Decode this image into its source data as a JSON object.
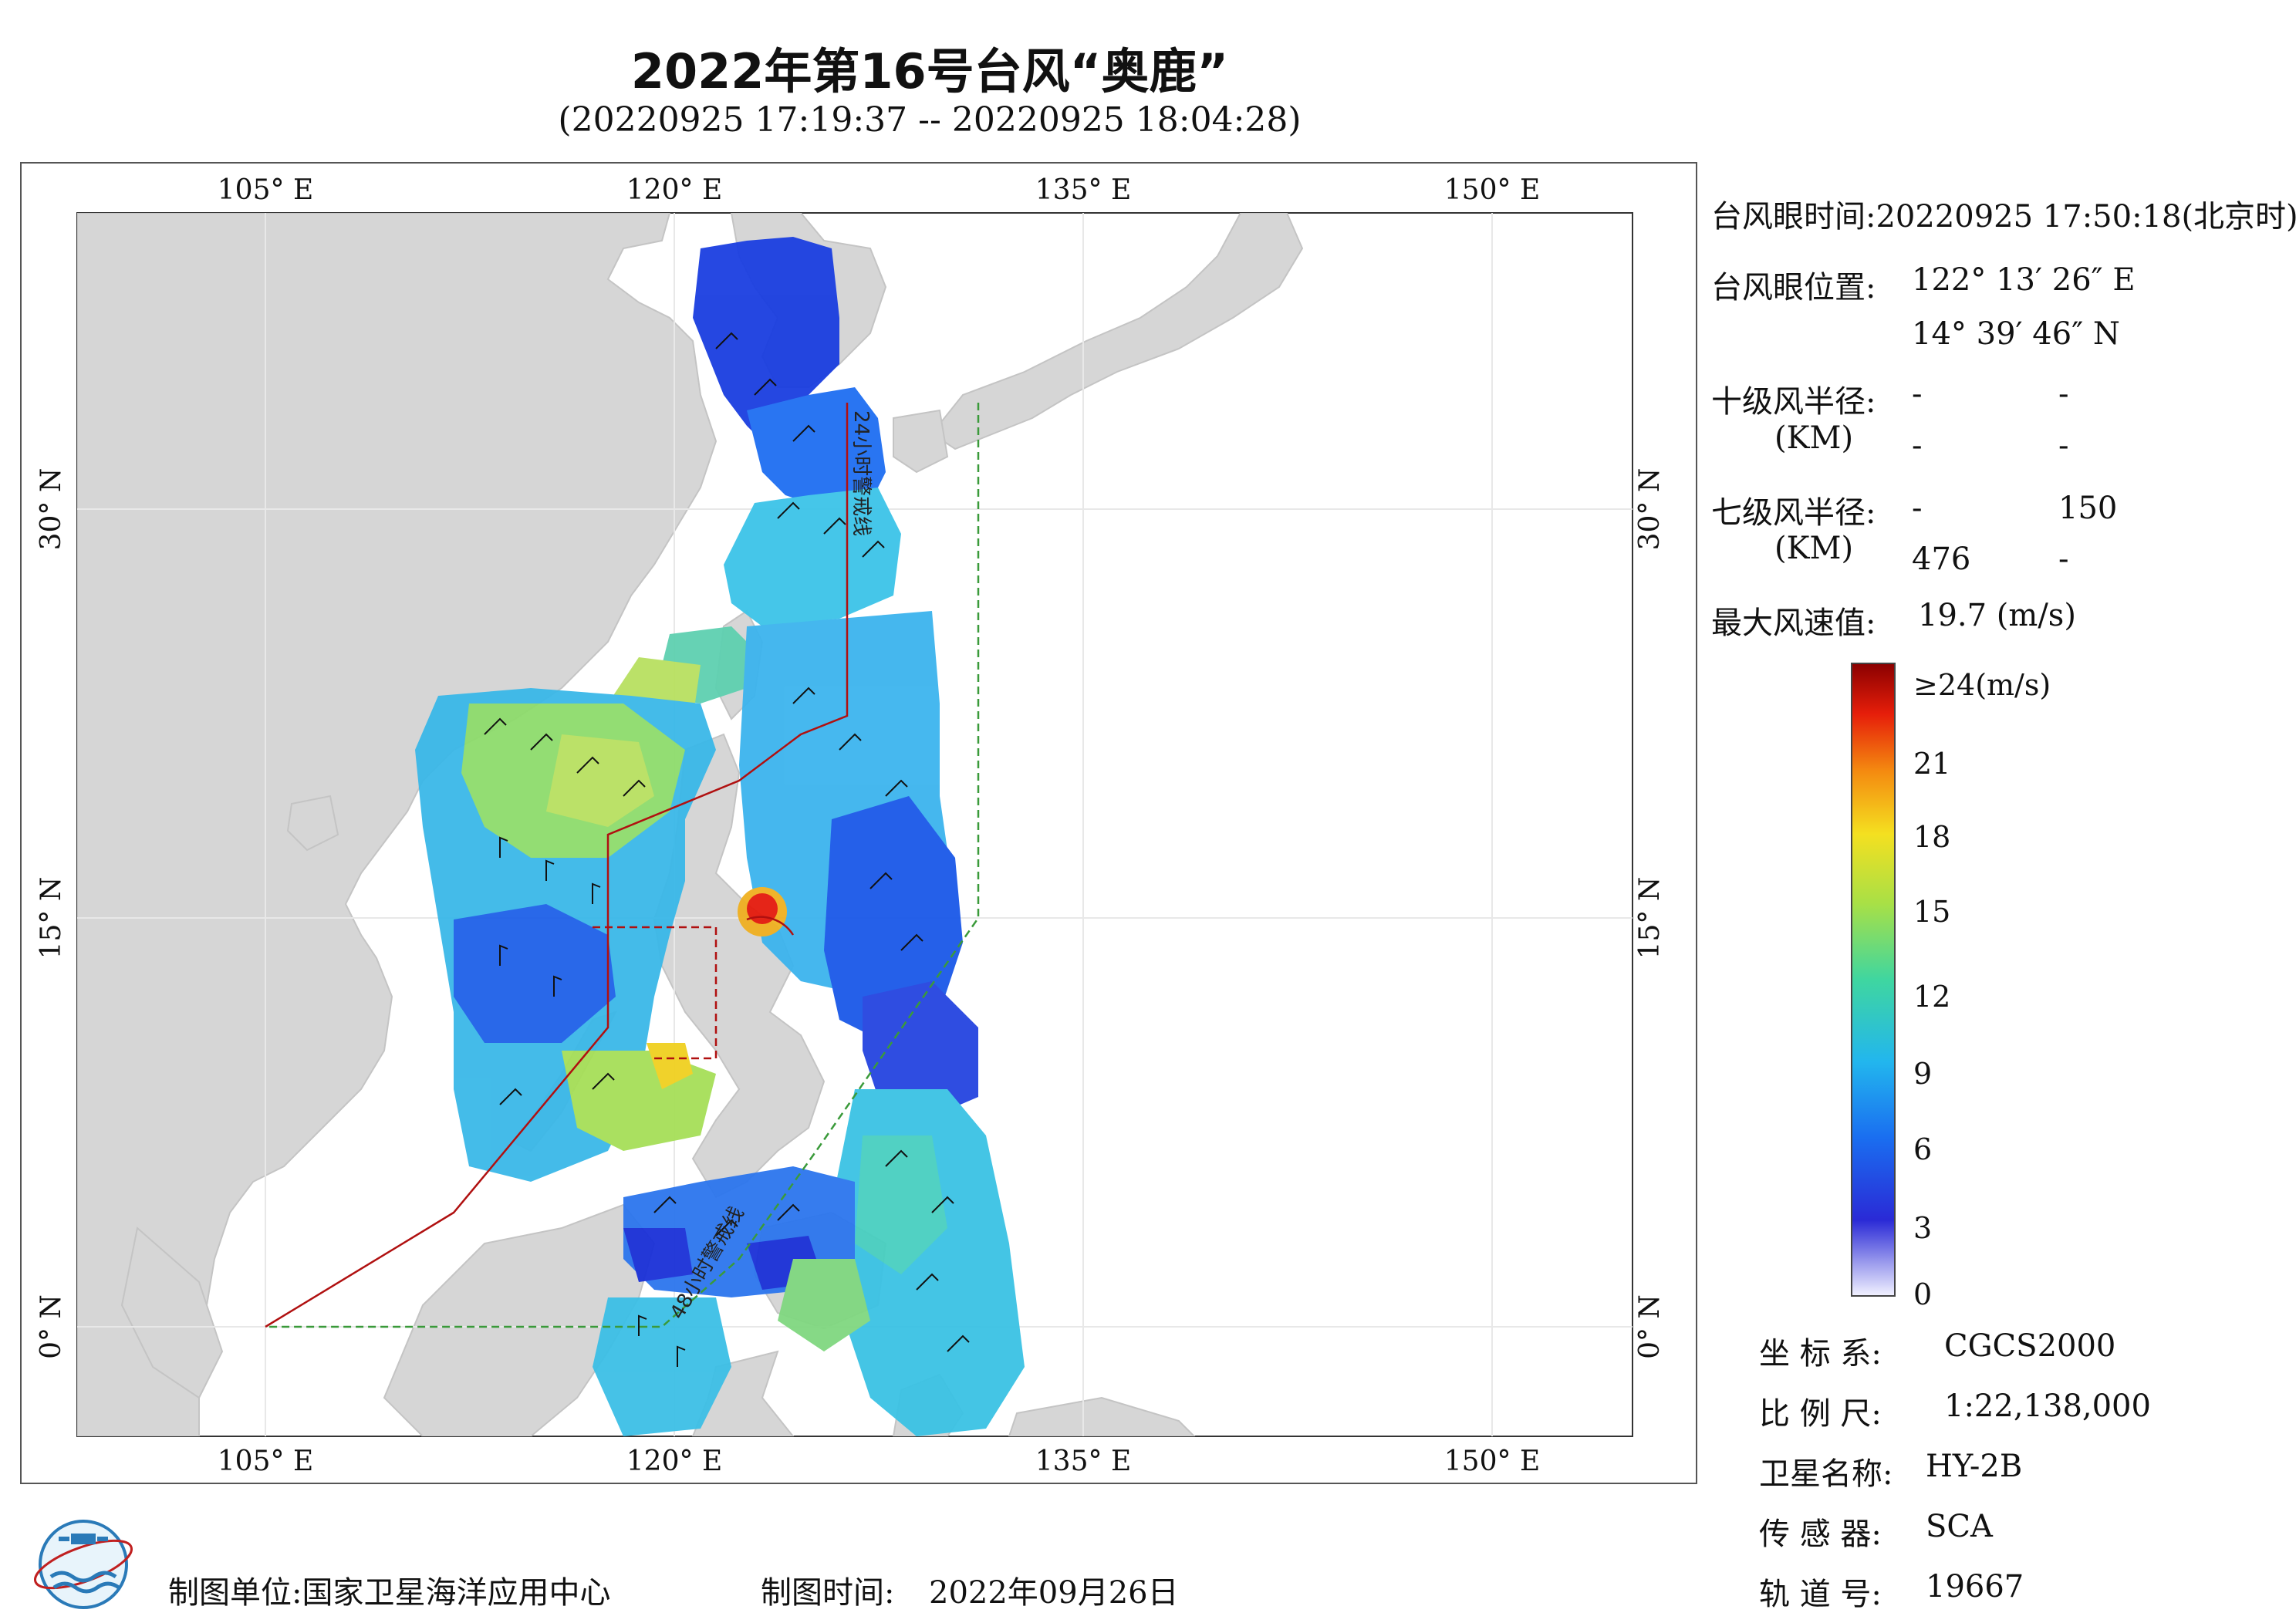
{
  "title": "2022年第16号台风“奥鹿”",
  "subtitle": "(20220925 17:19:37 -- 20220925 18:04:28)",
  "map": {
    "lon_labels": [
      "105° E",
      "120° E",
      "135° E",
      "150° E"
    ],
    "lat_labels": [
      "30° N",
      "15° N",
      "0° N"
    ],
    "track_label_24h": "24小时警戒线",
    "track_label_48h": "48小时警戒线",
    "colors": {
      "land": "#d6d6d6",
      "sea": "#ffffff",
      "warning_line": "#b01010",
      "green_line": "#3a9a3a"
    }
  },
  "info": {
    "eye_time_label": "台风眼时间:",
    "eye_time_value": "20220925 17:50:18(北京时)",
    "eye_pos_label": "台风眼位置:",
    "eye_lon": "122° 13′ 26″ E",
    "eye_lat": "14° 39′ 46″ N",
    "r10_label": "十级风半径:",
    "km_label": "(KM)",
    "r10_values": [
      "-",
      "-",
      "-",
      "-"
    ],
    "r7_label": "七级风半径:",
    "r7_values": [
      "-",
      "150",
      "476",
      "-"
    ],
    "max_wind_label": "最大风速值:",
    "max_wind_value": "19.7  (m/s)"
  },
  "colorbar": {
    "top_label": "≥24(m/s)",
    "ticks": [
      "21",
      "18",
      "15",
      "12",
      "9",
      "6",
      "3",
      "0"
    ],
    "colors": [
      "#f2f2ff",
      "#2a2ad6",
      "#1a6ef0",
      "#22b6ee",
      "#3fd6a0",
      "#a8e046",
      "#f4e020",
      "#f48a10",
      "#e61e0a",
      "#8a0000"
    ]
  },
  "meta": {
    "crs_label": "坐 标 系:",
    "crs_value": "CGCS2000",
    "scale_label": "比 例 尺:",
    "scale_value": "1:22,138,000",
    "sat_label": "卫星名称:",
    "sat_value": "HY-2B",
    "sensor_label": "传 感 器:",
    "sensor_value": "SCA",
    "orbit_label": "轨 道 号:",
    "orbit_value": "19667"
  },
  "footer": {
    "maker_label": "制图单位:",
    "maker_value": "国家卫星海洋应用中心",
    "time_label": "制图时间:",
    "time_value": "2022年09月26日"
  }
}
